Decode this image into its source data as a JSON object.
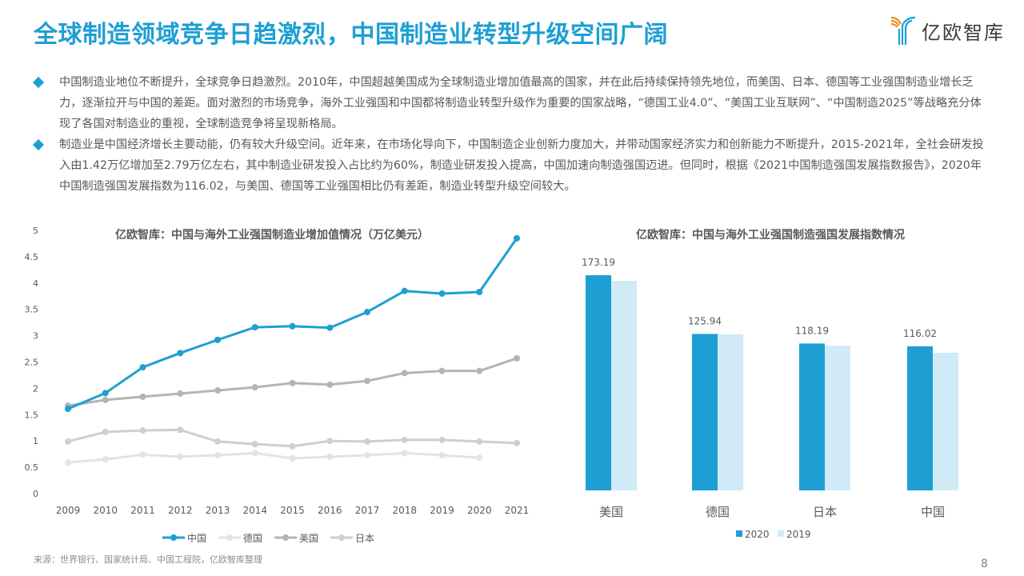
{
  "header": {
    "title": "全球制造领域竞争日趋激烈，中国制造业转型升级空间广阔",
    "logo_text": "亿欧智库",
    "accent_color": "#1e9fd4"
  },
  "bullets": [
    {
      "text": "中国制造业地位不断提升，全球竞争日趋激烈。2010年，中国超越美国成为全球制造业增加值最高的国家，并在此后持续保持领先地位，而美国、日本、德国等工业强国制造业增长乏力，逐渐拉开与中国的差距。面对激烈的市场竞争，海外工业强国和中国都将制造业转型升级作为重要的国家战略，“德国工业4.0”、“美国工业互联网”、“中国制造2025”等战略充分体现了各国对制造业的重视，全球制造竞争将呈现新格局。"
    },
    {
      "text": "制造业是中国经济增长主要动能，仍有较大升级空间。近年来，在市场化导向下，中国制造企业创新力度加大，并带动国家经济实力和创新能力不断提升，2015-2021年，全社会研发投入由1.42万亿增加至2.79万亿左右，其中制造业研发投入占比约为60%，制造业研发投入提高，中国加速向制造强国迈进。但同时，根据《2021中国制造强国发展指数报告》，2020年中国制造强国发展指数为116.02，与美国、德国等工业强国相比仍有差距，制造业转型升级空间较大。"
    }
  ],
  "chart_data": [
    {
      "type": "line",
      "title": "亿欧智库：中国与海外工业强国制造业增加值情况（万亿美元）",
      "xlabel": "",
      "ylabel": "",
      "ylim": [
        0,
        5
      ],
      "yticks": [
        "0",
        "0.5",
        "1",
        "1.5",
        "2",
        "2.5",
        "3",
        "3.5",
        "4",
        "4.5",
        "5"
      ],
      "x": [
        "2009",
        "2010",
        "2011",
        "2012",
        "2013",
        "2014",
        "2015",
        "2016",
        "2017",
        "2018",
        "2019",
        "2020",
        "2021"
      ],
      "grid": false,
      "legend_position": "bottom",
      "series": [
        {
          "name": "中国",
          "color": "#1e9fd4",
          "values": [
            1.61,
            1.91,
            2.4,
            2.67,
            2.92,
            3.16,
            3.18,
            3.15,
            3.45,
            3.85,
            3.8,
            3.83,
            4.85
          ]
        },
        {
          "name": "德国",
          "color": "#e3e3e3",
          "values": [
            0.59,
            0.65,
            0.74,
            0.7,
            0.73,
            0.77,
            0.67,
            0.7,
            0.73,
            0.77,
            0.73,
            0.68,
            null
          ]
        },
        {
          "name": "美国",
          "color": "#b4b4b4",
          "values": [
            1.67,
            1.78,
            1.84,
            1.9,
            1.96,
            2.02,
            2.1,
            2.07,
            2.14,
            2.29,
            2.33,
            2.33,
            2.57
          ]
        },
        {
          "name": "日本",
          "color": "#cfcfcf",
          "values": [
            0.99,
            1.17,
            1.2,
            1.21,
            0.99,
            0.94,
            0.9,
            1.0,
            0.99,
            1.02,
            1.02,
            0.99,
            0.96
          ]
        }
      ]
    },
    {
      "type": "bar",
      "title": "亿欧智库：中国与海外工业强国制造强国发展指数情况",
      "categories": [
        "美国",
        "德国",
        "日本",
        "中国"
      ],
      "ylim": [
        0,
        180
      ],
      "legend_position": "bottom",
      "series": [
        {
          "name": "2020",
          "color": "#1e9fd4",
          "values": [
            173.19,
            125.94,
            118.19,
            116.02
          ],
          "labels": [
            "173.19",
            "125.94",
            "118.19",
            "116.02"
          ]
        },
        {
          "name": "2019",
          "color": "#d0ebf7",
          "values": [
            168.7,
            125.6,
            116.5,
            110.8
          ]
        }
      ]
    }
  ],
  "footer": {
    "source": "来源：世界银行、国家统计局、中国工程院，亿欧智库整理",
    "page_number": "8"
  }
}
